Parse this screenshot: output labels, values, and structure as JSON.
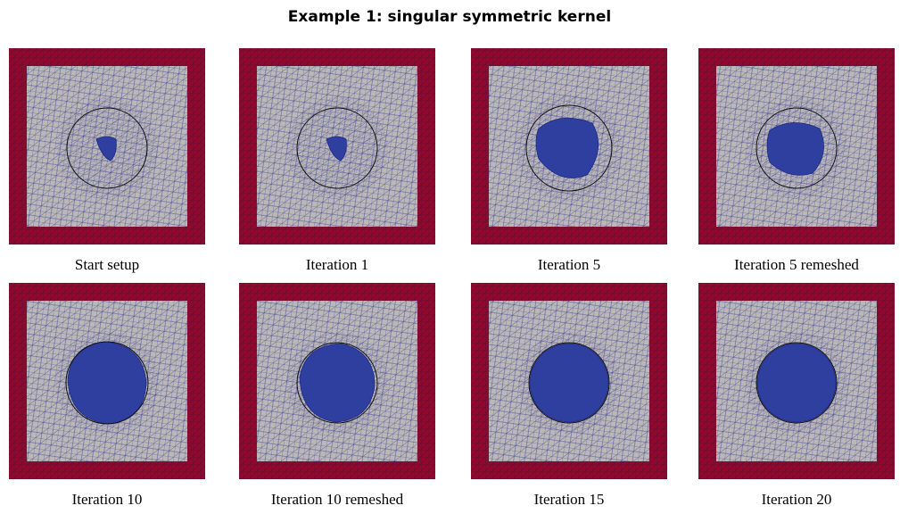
{
  "title": "Example 1: singular symmetric kernel",
  "panels": [
    {
      "caption": "Start setup"
    },
    {
      "caption": "Iteration 1"
    },
    {
      "caption": "Iteration 5"
    },
    {
      "caption": "Iteration 5 remeshed"
    },
    {
      "caption": "Iteration 10"
    },
    {
      "caption": "Iteration 10 remeshed"
    },
    {
      "caption": "Iteration 15"
    },
    {
      "caption": "Iteration 20"
    }
  ]
}
